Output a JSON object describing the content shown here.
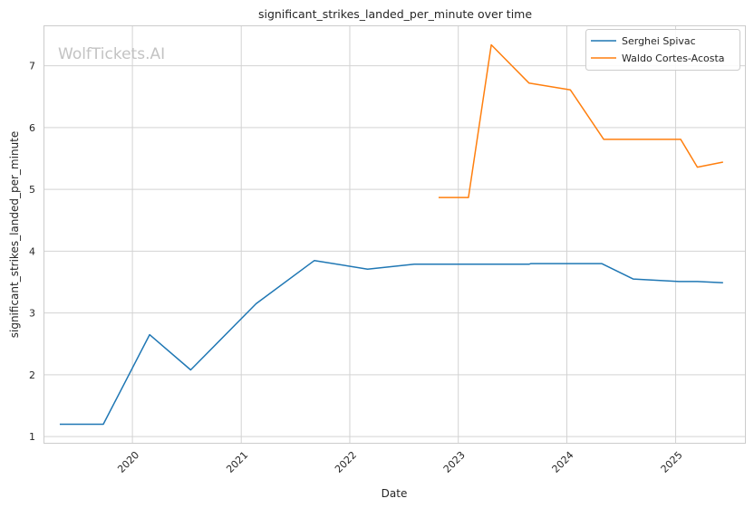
{
  "watermark": "WolfTickets.AI",
  "chart_data": {
    "type": "line",
    "title": "significant_strikes_landed_per_minute over time",
    "xlabel": "Date",
    "ylabel": "significant_strikes_landed_per_minute",
    "x_ticks": [
      "2020",
      "2021",
      "2022",
      "2023",
      "2024",
      "2025"
    ],
    "y_ticks": [
      1,
      2,
      3,
      4,
      5,
      6,
      7
    ],
    "xlim": [
      "2019-03-11",
      "2025-08-22"
    ],
    "ylim": [
      0.9,
      7.64
    ],
    "grid": true,
    "legend_position": "top-right",
    "series": [
      {
        "name": "Serghei Spivac",
        "color": "#1f77b4",
        "points": [
          [
            "2019-05-04",
            1.2
          ],
          [
            "2019-09-25",
            1.2
          ],
          [
            "2020-02-28",
            2.65
          ],
          [
            "2020-07-15",
            2.08
          ],
          [
            "2021-02-20",
            3.15
          ],
          [
            "2021-09-04",
            3.85
          ],
          [
            "2022-03-02",
            3.71
          ],
          [
            "2022-08-06",
            3.79
          ],
          [
            "2023-08-27",
            3.79
          ],
          [
            "2023-09-02",
            3.8
          ],
          [
            "2024-04-27",
            3.8
          ],
          [
            "2024-08-11",
            3.55
          ],
          [
            "2025-01-12",
            3.51
          ],
          [
            "2025-03-15",
            3.51
          ],
          [
            "2025-06-07",
            3.49
          ]
        ]
      },
      {
        "name": "Waldo Cortes-Acosta",
        "color": "#ff7f0e",
        "points": [
          [
            "2022-10-29",
            4.87
          ],
          [
            "2023-02-04",
            4.87
          ],
          [
            "2023-04-22",
            7.34
          ],
          [
            "2023-08-27",
            6.72
          ],
          [
            "2024-01-13",
            6.61
          ],
          [
            "2024-05-04",
            5.81
          ],
          [
            "2025-01-18",
            5.81
          ],
          [
            "2025-03-15",
            5.36
          ],
          [
            "2025-06-07",
            5.44
          ]
        ]
      }
    ]
  }
}
